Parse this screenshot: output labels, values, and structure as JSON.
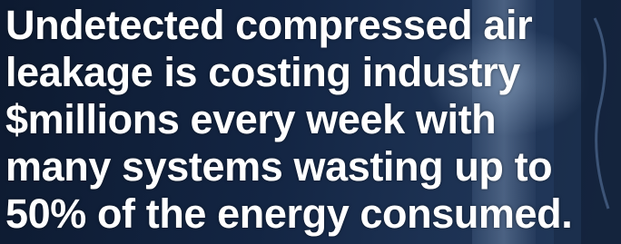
{
  "headline": {
    "lines": [
      "Undetected compressed air",
      "leakage is costing industry",
      "$millions every week with",
      "many systems wasting up to",
      "50% of the energy consumed."
    ]
  }
}
